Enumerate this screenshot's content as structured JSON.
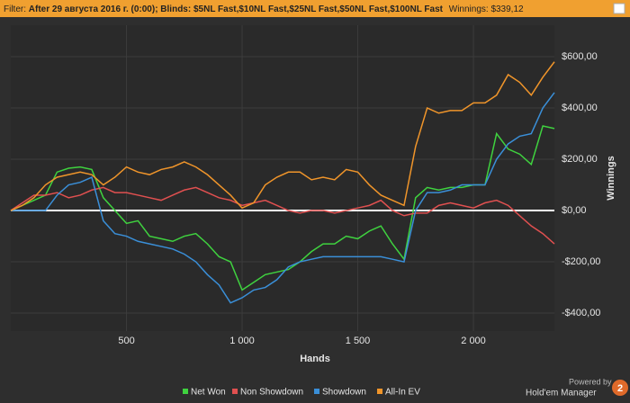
{
  "header": {
    "label": "Filter:",
    "filter": "After 29 августа 2016 г. (0:00); Blinds: $5NL Fast,$10NL Fast,$25NL Fast,$50NL Fast,$100NL Fast",
    "winnings_label": "Winnings:",
    "winnings": "$339,12"
  },
  "branding": {
    "powered": "Powered by",
    "product": "Hold'em Manager",
    "version": "2"
  },
  "chart_data": {
    "type": "line",
    "x_label": "Hands",
    "y_label": "Winnings",
    "x": [
      0,
      50,
      100,
      150,
      200,
      250,
      300,
      350,
      400,
      450,
      500,
      550,
      600,
      650,
      700,
      750,
      800,
      850,
      900,
      950,
      1000,
      1050,
      1100,
      1150,
      1200,
      1250,
      1300,
      1350,
      1400,
      1450,
      1500,
      1550,
      1600,
      1650,
      1700,
      1750,
      1800,
      1850,
      1900,
      1950,
      2000,
      2050,
      2100,
      2150,
      2200,
      2250,
      2300,
      2350
    ],
    "series": [
      {
        "name": "Net Won",
        "color": "#3fd23f",
        "values": [
          0,
          20,
          40,
          60,
          150,
          165,
          170,
          160,
          50,
          0,
          -50,
          -40,
          -100,
          -110,
          -120,
          -100,
          -90,
          -130,
          -180,
          -200,
          -310,
          -280,
          -250,
          -240,
          -230,
          -200,
          -160,
          -130,
          -130,
          -100,
          -110,
          -80,
          -60,
          -130,
          -190,
          50,
          90,
          80,
          90,
          90,
          100,
          100,
          300,
          240,
          220,
          180,
          330,
          320
        ]
      },
      {
        "name": "Non Showdown",
        "color": "#e05050",
        "values": [
          0,
          30,
          60,
          60,
          70,
          50,
          60,
          80,
          90,
          70,
          70,
          60,
          50,
          40,
          60,
          80,
          90,
          70,
          50,
          40,
          20,
          30,
          40,
          20,
          0,
          -10,
          0,
          0,
          -10,
          0,
          10,
          20,
          40,
          0,
          -20,
          -10,
          -10,
          20,
          30,
          20,
          10,
          30,
          40,
          20,
          -20,
          -60,
          -90,
          -130
        ]
      },
      {
        "name": "Showdown",
        "color": "#3a8fd8",
        "values": [
          0,
          0,
          0,
          0,
          60,
          100,
          110,
          130,
          -40,
          -90,
          -100,
          -120,
          -130,
          -140,
          -150,
          -170,
          -200,
          -250,
          -290,
          -360,
          -340,
          -310,
          -300,
          -270,
          -220,
          -200,
          -190,
          -180,
          -180,
          -180,
          -180,
          -180,
          -180,
          -190,
          -200,
          0,
          70,
          70,
          80,
          100,
          100,
          100,
          200,
          260,
          290,
          300,
          400,
          460
        ]
      },
      {
        "name": "All-In EV",
        "color": "#f0952a",
        "values": [
          0,
          20,
          50,
          100,
          130,
          140,
          150,
          140,
          100,
          130,
          170,
          150,
          140,
          160,
          170,
          190,
          170,
          140,
          100,
          60,
          10,
          30,
          100,
          130,
          150,
          150,
          120,
          130,
          120,
          160,
          150,
          100,
          60,
          40,
          20,
          250,
          400,
          380,
          390,
          390,
          420,
          420,
          450,
          530,
          500,
          450,
          520,
          580
        ]
      }
    ],
    "xlim": [
      0,
      2350
    ],
    "ylim": [
      -470,
      723
    ],
    "xticks": [
      {
        "value": 500,
        "label": "500"
      },
      {
        "value": 1000,
        "label": "1 000"
      },
      {
        "value": 1500,
        "label": "1 500"
      },
      {
        "value": 2000,
        "label": "2 000"
      }
    ],
    "yticks": [
      {
        "value": -400,
        "label": "-$400,00"
      },
      {
        "value": -200,
        "label": "-$200,00"
      },
      {
        "value": 0,
        "label": "$0,00"
      },
      {
        "value": 200,
        "label": "$200,00"
      },
      {
        "value": 400,
        "label": "$400,00"
      },
      {
        "value": 600,
        "label": "$600,00"
      }
    ],
    "grid": true,
    "legend": "bottom"
  }
}
